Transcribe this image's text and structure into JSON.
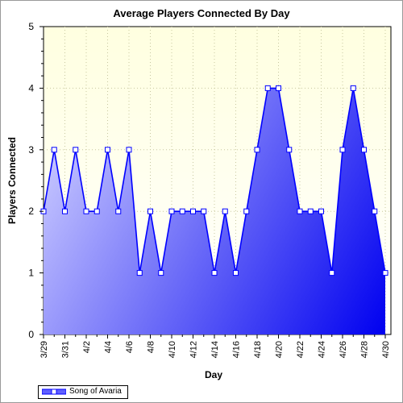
{
  "chart_data": {
    "type": "area",
    "title": "Average Players Connected By Day",
    "xlabel": "Day",
    "ylabel": "Players Connected",
    "ylim": [
      0,
      5
    ],
    "yticks": [
      "0",
      "1",
      "2",
      "3",
      "4",
      "5"
    ],
    "grid": true,
    "legend_position": "bottom-left",
    "x": [
      "3/29",
      "3/30",
      "3/31",
      "4/1",
      "4/2",
      "4/3",
      "4/4",
      "4/5",
      "4/6",
      "4/7",
      "4/8",
      "4/9",
      "4/10",
      "4/11",
      "4/12",
      "4/13",
      "4/14",
      "4/15",
      "4/16",
      "4/17",
      "4/18",
      "4/19",
      "4/20",
      "4/21",
      "4/22",
      "4/23",
      "4/24",
      "4/25",
      "4/26",
      "4/27",
      "4/28",
      "4/29",
      "4/30"
    ],
    "xtick_labels": [
      "3/29",
      "3/31",
      "4/2",
      "4/4",
      "4/6",
      "4/8",
      "4/10",
      "4/12",
      "4/14",
      "4/16",
      "4/18",
      "4/20",
      "4/22",
      "4/24",
      "4/26",
      "4/28",
      "4/30"
    ],
    "series": [
      {
        "name": "Song of Avaria",
        "values": [
          2,
          3,
          2,
          3,
          2,
          2,
          3,
          2,
          3,
          1,
          2,
          1,
          2,
          2,
          2,
          2,
          1,
          2,
          1,
          2,
          3,
          4,
          4,
          3,
          2,
          2,
          2,
          1,
          3,
          4,
          3,
          2,
          1
        ]
      }
    ],
    "colors": {
      "line": "#0000ff",
      "fill_light": "#c8c8ff",
      "fill_dark": "#0000f0",
      "plot_bg_top": "#ffffe0",
      "plot_bg_bottom": "#ffffff",
      "grid": "#c8c8a0"
    }
  }
}
